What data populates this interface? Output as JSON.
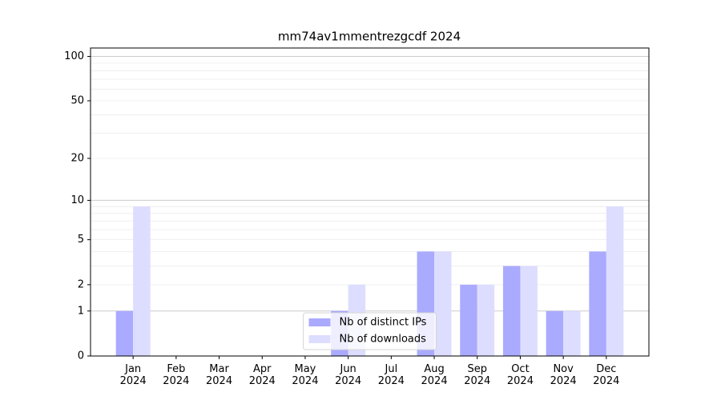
{
  "chart_data": {
    "type": "bar",
    "title": "mm74av1mmentrezgcdf 2024",
    "categories": [
      "Jan\n2024",
      "Feb\n2024",
      "Mar\n2024",
      "Apr\n2024",
      "May\n2024",
      "Jun\n2024",
      "Jul\n2024",
      "Aug\n2024",
      "Sep\n2024",
      "Oct\n2024",
      "Nov\n2024",
      "Dec\n2024"
    ],
    "series": [
      {
        "name": "Nb of distinct IPs",
        "color": "#aaaaff",
        "values": [
          1,
          0,
          0,
          0,
          0,
          1,
          0,
          4,
          2,
          3,
          1,
          4
        ]
      },
      {
        "name": "Nb of downloads",
        "color": "#ddddff",
        "values": [
          9,
          0,
          0,
          0,
          0,
          2,
          0,
          4,
          2,
          3,
          1,
          9
        ]
      }
    ],
    "yscale": "log1p",
    "ylim": [
      0,
      114
    ],
    "yticks": [
      0,
      1,
      2,
      5,
      10,
      20,
      50,
      100
    ],
    "ymajorgrid": [
      1,
      10,
      100
    ],
    "yminorgrid": [
      2,
      3,
      4,
      5,
      6,
      7,
      8,
      9,
      20,
      30,
      40,
      50,
      60,
      70,
      80,
      90
    ],
    "grid": true,
    "legend": "lower center"
  }
}
